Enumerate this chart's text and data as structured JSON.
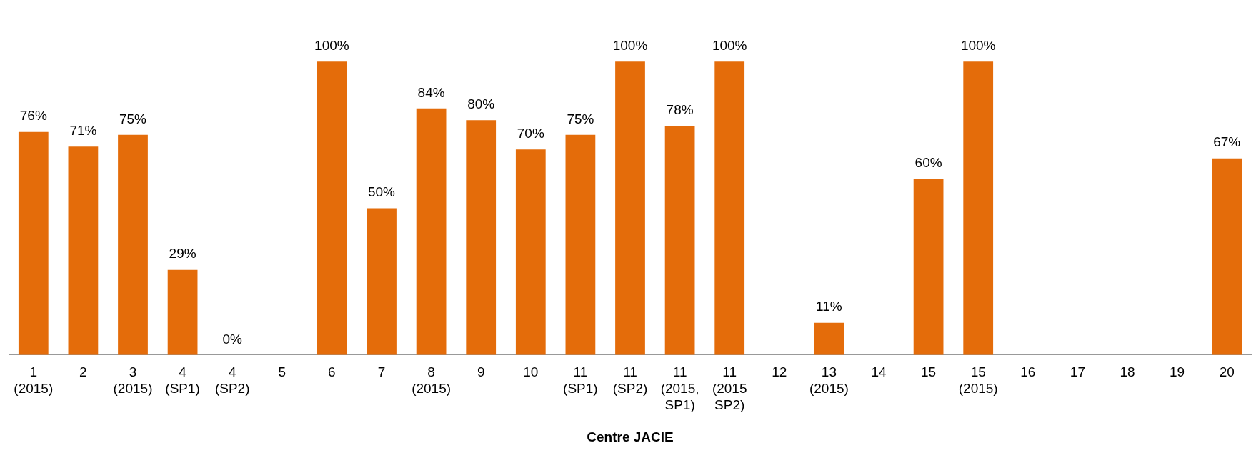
{
  "chart_data": {
    "type": "bar",
    "xlabel": "Centre JACIE",
    "categories": [
      "1\n(2015)",
      "2",
      "3\n(2015)",
      "4\n(SP1)",
      "4\n(SP2)",
      "5",
      "6",
      "7",
      "8\n(2015)",
      "9",
      "10",
      "11\n(SP1)",
      "11\n(SP2)",
      "11\n(2015,\nSP1)",
      "11\n(2015\nSP2)",
      "12",
      "13\n(2015)",
      "14",
      "15",
      "15\n(2015)",
      "16",
      "17",
      "18",
      "19",
      "20"
    ],
    "values": [
      76,
      71,
      75,
      29,
      0,
      null,
      100,
      50,
      84,
      80,
      70,
      75,
      100,
      78,
      100,
      null,
      11,
      null,
      60,
      100,
      null,
      null,
      null,
      null,
      67
    ],
    "value_labels": [
      "76%",
      "71%",
      "75%",
      "29%",
      "0%",
      null,
      "100%",
      "50%",
      "84%",
      "80%",
      "70%",
      "75%",
      "100%",
      "78%",
      "100%",
      null,
      "11%",
      null,
      "60%",
      "100%",
      null,
      null,
      null,
      null,
      "67%"
    ],
    "color": "#e46c0a",
    "tick_labels": "x",
    "grid": false,
    "legend": false
  }
}
